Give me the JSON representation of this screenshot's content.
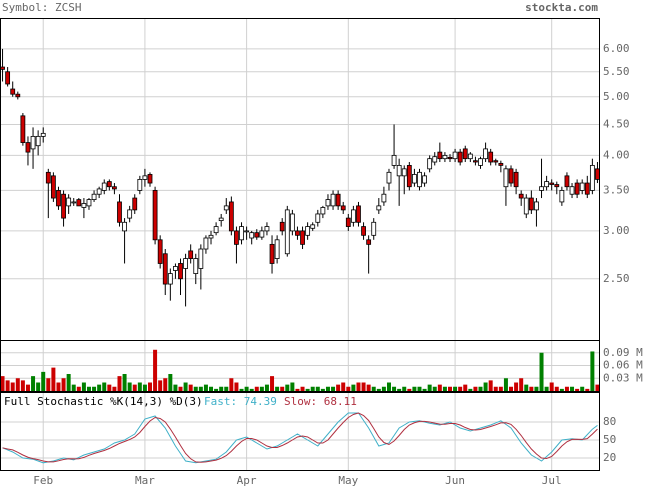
{
  "header": {
    "symbol": "Symbol: ZCSH",
    "site": "stockta.com"
  },
  "chart_data": [
    {
      "type": "candlestick",
      "log_scale": true,
      "grid": true,
      "up_color": "#ffffff",
      "down_color": "#cc0000",
      "wick_color": "#000000",
      "ylim": [
        1.98,
        6.75
      ],
      "yticks": [
        {
          "value": 2.5,
          "label": "2.50"
        },
        {
          "value": 3,
          "label": "3.00"
        },
        {
          "value": 3.5,
          "label": "3.50"
        },
        {
          "value": 4,
          "label": "4.00"
        },
        {
          "value": 4.5,
          "label": "4.50"
        },
        {
          "value": 5,
          "label": "5.00"
        },
        {
          "value": 5.5,
          "label": "5.50"
        },
        {
          "value": 6,
          "label": "6.00"
        }
      ],
      "ohlc": [
        [
          5.6,
          6.0,
          5.3,
          5.55
        ],
        [
          5.5,
          5.6,
          5.2,
          5.25
        ],
        [
          5.15,
          5.3,
          5.0,
          5.05
        ],
        [
          5.05,
          5.1,
          4.95,
          5.0
        ],
        [
          4.65,
          4.7,
          4.15,
          4.2
        ],
        [
          4.2,
          4.3,
          3.85,
          4.05
        ],
        [
          4.1,
          4.45,
          3.8,
          4.3
        ],
        [
          4.15,
          4.4,
          4.0,
          4.3
        ],
        [
          4.3,
          4.45,
          4.2,
          4.35
        ],
        [
          3.75,
          3.8,
          3.15,
          3.6
        ],
        [
          3.7,
          3.75,
          3.35,
          3.4
        ],
        [
          3.5,
          3.55,
          3.25,
          3.3
        ],
        [
          3.45,
          3.5,
          3.05,
          3.15
        ],
        [
          3.3,
          3.45,
          3.2,
          3.4
        ],
        [
          3.35,
          3.4,
          3.3,
          3.35
        ],
        [
          3.38,
          3.4,
          3.3,
          3.3
        ],
        [
          3.28,
          3.4,
          3.15,
          3.33
        ],
        [
          3.3,
          3.4,
          3.25,
          3.38
        ],
        [
          3.38,
          3.5,
          3.35,
          3.45
        ],
        [
          3.45,
          3.55,
          3.4,
          3.52
        ],
        [
          3.5,
          3.65,
          3.45,
          3.6
        ],
        [
          3.62,
          3.65,
          3.5,
          3.55
        ],
        [
          3.55,
          3.6,
          3.45,
          3.52
        ],
        [
          3.35,
          3.45,
          3.05,
          3.1
        ],
        [
          3.0,
          3.15,
          2.65,
          3.1
        ],
        [
          3.15,
          3.3,
          3.1,
          3.25
        ],
        [
          3.4,
          3.45,
          3.2,
          3.25
        ],
        [
          3.5,
          3.7,
          3.45,
          3.65
        ],
        [
          3.65,
          3.8,
          3.55,
          3.7
        ],
        [
          3.72,
          3.75,
          3.55,
          3.6
        ],
        [
          3.5,
          3.55,
          2.85,
          2.9
        ],
        [
          2.9,
          2.95,
          2.6,
          2.65
        ],
        [
          2.75,
          2.8,
          2.35,
          2.45
        ],
        [
          2.45,
          2.6,
          2.3,
          2.55
        ],
        [
          2.58,
          2.65,
          2.5,
          2.62
        ],
        [
          2.65,
          2.7,
          2.35,
          2.5
        ],
        [
          2.6,
          2.75,
          2.25,
          2.7
        ],
        [
          2.78,
          2.85,
          2.65,
          2.7
        ],
        [
          2.55,
          2.75,
          2.45,
          2.7
        ],
        [
          2.6,
          2.85,
          2.4,
          2.8
        ],
        [
          2.8,
          2.95,
          2.75,
          2.92
        ],
        [
          2.92,
          3.0,
          2.85,
          2.95
        ],
        [
          2.98,
          3.1,
          2.95,
          3.05
        ],
        [
          3.12,
          3.2,
          3.05,
          3.15
        ],
        [
          3.25,
          3.4,
          3.2,
          3.3
        ],
        [
          3.35,
          3.42,
          2.95,
          3.0
        ],
        [
          3.0,
          3.05,
          2.65,
          2.85
        ],
        [
          2.9,
          3.1,
          2.85,
          3.05
        ],
        [
          3.0,
          3.05,
          2.9,
          3.0
        ],
        [
          2.92,
          3.0,
          2.85,
          2.98
        ],
        [
          2.98,
          3.02,
          2.9,
          2.93
        ],
        [
          2.93,
          3.05,
          2.9,
          3.0
        ],
        [
          3.0,
          3.1,
          2.95,
          3.05
        ],
        [
          2.85,
          2.95,
          2.55,
          2.65
        ],
        [
          2.7,
          2.95,
          2.65,
          2.9
        ],
        [
          3.1,
          3.15,
          2.95,
          3.0
        ],
        [
          2.75,
          3.3,
          2.72,
          3.25
        ],
        [
          3.0,
          3.25,
          2.95,
          3.2
        ],
        [
          3.0,
          3.05,
          2.9,
          2.95
        ],
        [
          3.0,
          3.05,
          2.8,
          2.85
        ],
        [
          2.95,
          3.1,
          2.9,
          3.05
        ],
        [
          3.03,
          3.1,
          3.0,
          3.07
        ],
        [
          3.1,
          3.25,
          3.05,
          3.2
        ],
        [
          3.2,
          3.3,
          3.15,
          3.28
        ],
        [
          3.3,
          3.45,
          3.25,
          3.38
        ],
        [
          3.3,
          3.5,
          3.25,
          3.45
        ],
        [
          3.45,
          3.5,
          3.25,
          3.3
        ],
        [
          3.3,
          3.35,
          3.2,
          3.25
        ],
        [
          3.15,
          3.2,
          3.0,
          3.05
        ],
        [
          3.1,
          3.3,
          3.05,
          3.25
        ],
        [
          3.3,
          3.35,
          3.05,
          3.1
        ],
        [
          3.05,
          3.1,
          2.9,
          2.95
        ],
        [
          2.9,
          2.95,
          2.55,
          2.85
        ],
        [
          2.95,
          3.15,
          2.9,
          3.1
        ],
        [
          3.25,
          3.4,
          3.2,
          3.3
        ],
        [
          3.35,
          3.55,
          3.3,
          3.45
        ],
        [
          3.6,
          3.8,
          3.5,
          3.75
        ],
        [
          3.85,
          4.5,
          3.8,
          4.0
        ],
        [
          3.7,
          3.95,
          3.3,
          3.85
        ],
        [
          3.7,
          3.85,
          3.45,
          3.8
        ],
        [
          3.85,
          3.9,
          3.5,
          3.55
        ],
        [
          3.6,
          3.8,
          3.55,
          3.72
        ],
        [
          3.55,
          3.8,
          3.5,
          3.75
        ],
        [
          3.6,
          3.75,
          3.55,
          3.7
        ],
        [
          3.8,
          4.0,
          3.75,
          3.95
        ],
        [
          3.9,
          4.05,
          3.85,
          3.98
        ],
        [
          4.05,
          4.2,
          3.9,
          3.95
        ],
        [
          3.95,
          4.05,
          3.9,
          4.0
        ],
        [
          3.97,
          4.02,
          3.9,
          3.95
        ],
        [
          3.95,
          4.1,
          3.9,
          4.05
        ],
        [
          4.05,
          4.1,
          3.85,
          3.9
        ],
        [
          4.1,
          4.15,
          3.9,
          3.95
        ],
        [
          3.95,
          4.05,
          3.9,
          4.02
        ],
        [
          3.92,
          3.98,
          3.85,
          3.9
        ],
        [
          3.85,
          3.98,
          3.8,
          3.95
        ],
        [
          3.95,
          4.2,
          3.9,
          4.1
        ],
        [
          4.05,
          4.1,
          3.85,
          3.9
        ],
        [
          3.92,
          3.95,
          3.85,
          3.9
        ],
        [
          3.88,
          3.92,
          3.75,
          3.85
        ],
        [
          3.55,
          3.85,
          3.3,
          3.8
        ],
        [
          3.8,
          3.85,
          3.55,
          3.6
        ],
        [
          3.75,
          3.8,
          3.45,
          3.55
        ],
        [
          3.45,
          3.5,
          3.3,
          3.4
        ],
        [
          3.2,
          3.45,
          3.15,
          3.4
        ],
        [
          3.4,
          3.5,
          3.2,
          3.25
        ],
        [
          3.25,
          3.4,
          3.05,
          3.35
        ],
        [
          3.5,
          3.95,
          3.4,
          3.55
        ],
        [
          3.55,
          3.7,
          3.5,
          3.62
        ],
        [
          3.6,
          3.65,
          3.5,
          3.58
        ],
        [
          3.58,
          3.62,
          3.45,
          3.55
        ],
        [
          3.35,
          3.55,
          3.3,
          3.5
        ],
        [
          3.7,
          3.75,
          3.5,
          3.55
        ],
        [
          3.45,
          3.6,
          3.4,
          3.55
        ],
        [
          3.6,
          3.65,
          3.4,
          3.45
        ],
        [
          3.5,
          3.65,
          3.45,
          3.6
        ],
        [
          3.6,
          3.7,
          3.4,
          3.45
        ],
        [
          3.5,
          3.95,
          3.45,
          3.85
        ],
        [
          3.8,
          3.9,
          3.6,
          3.65
        ]
      ]
    },
    {
      "type": "bar",
      "grid": true,
      "up_color": "#008000",
      "down_color": "#cc0000",
      "ylim": [
        0,
        0.12
      ],
      "yticks": [
        {
          "value": 0.03,
          "label": "0.03 M"
        },
        {
          "value": 0.06,
          "label": "0.06 M"
        },
        {
          "value": 0.09,
          "label": "0.09 M"
        }
      ],
      "values": [
        0.035,
        0.025,
        0.02,
        0.03,
        0.025,
        0.015,
        0.035,
        0.02,
        0.045,
        0.03,
        0.055,
        0.02,
        0.03,
        0.04,
        0.015,
        0.01,
        0.02,
        0.01,
        0.01,
        0.015,
        0.02,
        0.015,
        0.01,
        0.035,
        0.04,
        0.02,
        0.015,
        0.02,
        0.015,
        0.02,
        0.097,
        0.025,
        0.03,
        0.04,
        0.015,
        0.01,
        0.02,
        0.015,
        0.01,
        0.01,
        0.015,
        0.01,
        0.005,
        0.01,
        0.01,
        0.03,
        0.02,
        0.005,
        0.01,
        0.005,
        0.01,
        0.01,
        0.015,
        0.035,
        0.01,
        0.01,
        0.015,
        0.02,
        0.005,
        0.01,
        0.005,
        0.01,
        0.01,
        0.005,
        0.01,
        0.01,
        0.015,
        0.02,
        0.01,
        0.015,
        0.02,
        0.02,
        0.015,
        0.01,
        0.005,
        0.01,
        0.02,
        0.01,
        0.005,
        0.01,
        0.005,
        0.01,
        0.01,
        0.005,
        0.015,
        0.01,
        0.015,
        0.01,
        0.01,
        0.01,
        0.01,
        0.015,
        0.005,
        0.01,
        0.01,
        0.02,
        0.025,
        0.01,
        0.01,
        0.03,
        0.01,
        0.02,
        0.03,
        0.015,
        0.01,
        0.01,
        0.09,
        0.01,
        0.02,
        0.01,
        0.005,
        0.01,
        0.01,
        0.005,
        0.01,
        0.005,
        0.093,
        0.015
      ]
    },
    {
      "type": "line",
      "grid": true,
      "title": "Full Stochastic %K(14,3) %D(3)",
      "ylim": [
        0,
        130
      ],
      "yticks": [
        20,
        50,
        80
      ],
      "xticks": [
        {
          "value": 8,
          "label": "Feb"
        },
        {
          "value": 28,
          "label": "Mar"
        },
        {
          "value": 48,
          "label": "Apr"
        },
        {
          "value": 68,
          "label": "May"
        },
        {
          "value": 89,
          "label": "Jun"
        },
        {
          "value": 108,
          "label": "Jul"
        }
      ],
      "series": [
        {
          "name": "Fast: 74.39",
          "color": "#3fb0c8",
          "values": [
            37,
            33.5,
            30,
            25,
            20,
            19,
            18,
            15,
            12,
            13.5,
            15,
            17.5,
            20,
            18.5,
            17,
            21,
            25,
            27.5,
            30,
            32.5,
            35,
            40,
            45,
            47.5,
            50,
            55,
            60,
            72.5,
            85,
            87.5,
            90,
            80,
            70,
            55,
            40,
            27.5,
            15,
            13.5,
            12,
            13.5,
            15,
            16.5,
            18,
            24,
            30,
            40,
            50,
            52.5,
            55,
            50,
            45,
            40,
            35,
            37.5,
            40,
            45,
            50,
            55,
            60,
            55,
            50,
            45,
            40,
            50,
            60,
            70,
            80,
            87.5,
            95,
            95,
            95,
            82.5,
            70,
            55,
            40,
            42.5,
            45,
            57.5,
            70,
            75,
            80,
            81,
            82,
            80,
            78,
            76.5,
            75,
            77.5,
            80,
            75,
            70,
            67.5,
            65,
            67.5,
            70,
            72.5,
            75,
            78.5,
            82,
            76,
            70,
            57.5,
            45,
            35,
            25,
            20,
            15,
            22.5,
            30,
            40,
            50,
            51,
            52,
            51,
            50,
            59,
            68,
            74.39
          ]
        },
        {
          "name": "Slow: 68.11",
          "color": "#b03040",
          "values": [
            37,
            35,
            33.5,
            29.5,
            25,
            21.3,
            19,
            17.3,
            15,
            13.5,
            13.5,
            15.3,
            17.5,
            18.7,
            18.5,
            18.8,
            21,
            24.5,
            27.5,
            30,
            32.5,
            35.8,
            40,
            44.2,
            47.5,
            50.8,
            55,
            62.5,
            72.5,
            81.7,
            87.5,
            85.8,
            80,
            68.3,
            55,
            40.8,
            27.5,
            18.7,
            13.5,
            13,
            13.5,
            15,
            16.5,
            19.5,
            24,
            31.3,
            40,
            47.5,
            52.5,
            52.5,
            50,
            45,
            40,
            37.5,
            37.5,
            40.8,
            45,
            50,
            55,
            56.7,
            55,
            50,
            45,
            45,
            50,
            60,
            70,
            79.2,
            87.5,
            92.5,
            95,
            90.8,
            82.5,
            69.2,
            55,
            45.8,
            42.5,
            48.3,
            57.5,
            67.5,
            75,
            78.7,
            81,
            81,
            80,
            78.2,
            76.5,
            76.3,
            77.5,
            77.5,
            75,
            70.8,
            67.5,
            66.7,
            67.5,
            70,
            72.5,
            75.3,
            78.5,
            78.8,
            76,
            67.8,
            57.5,
            45.8,
            35,
            26.7,
            20,
            19.2,
            22.5,
            30.8,
            40,
            47,
            51,
            51.3,
            51,
            52.2,
            59.8,
            68.11
          ]
        }
      ]
    }
  ]
}
